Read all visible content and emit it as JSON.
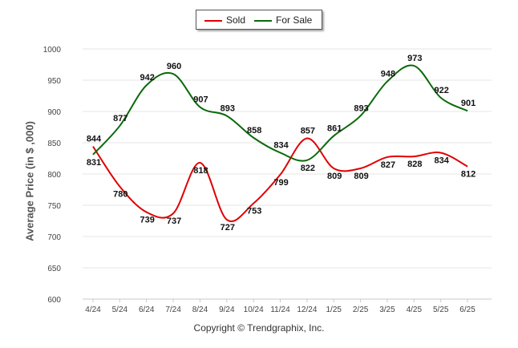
{
  "chart_data": {
    "type": "line",
    "categories": [
      "4/24",
      "5/24",
      "6/24",
      "7/24",
      "8/24",
      "9/24",
      "10/24",
      "11/24",
      "12/24",
      "1/25",
      "2/25",
      "3/25",
      "4/25",
      "5/25",
      "6/25"
    ],
    "series": [
      {
        "name": "Sold",
        "color": "#e10000",
        "values": [
          844,
          780,
          739,
          737,
          818,
          727,
          753,
          799,
          857,
          809,
          809,
          827,
          828,
          834,
          812
        ]
      },
      {
        "name": "For Sale",
        "color": "#0a6a0a",
        "values": [
          831,
          877,
          942,
          960,
          907,
          893,
          858,
          834,
          822,
          861,
          893,
          948,
          973,
          922,
          901
        ]
      }
    ],
    "ylabel": "Average Price (in $ ,000)",
    "xlabel": "",
    "ylim": [
      600,
      1000
    ],
    "yticks": [
      600,
      650,
      700,
      750,
      800,
      850,
      900,
      950,
      1000
    ],
    "grid": true,
    "legend": "top-center"
  },
  "footer": {
    "copyright": "Copyright © Trendgraphix, Inc."
  }
}
